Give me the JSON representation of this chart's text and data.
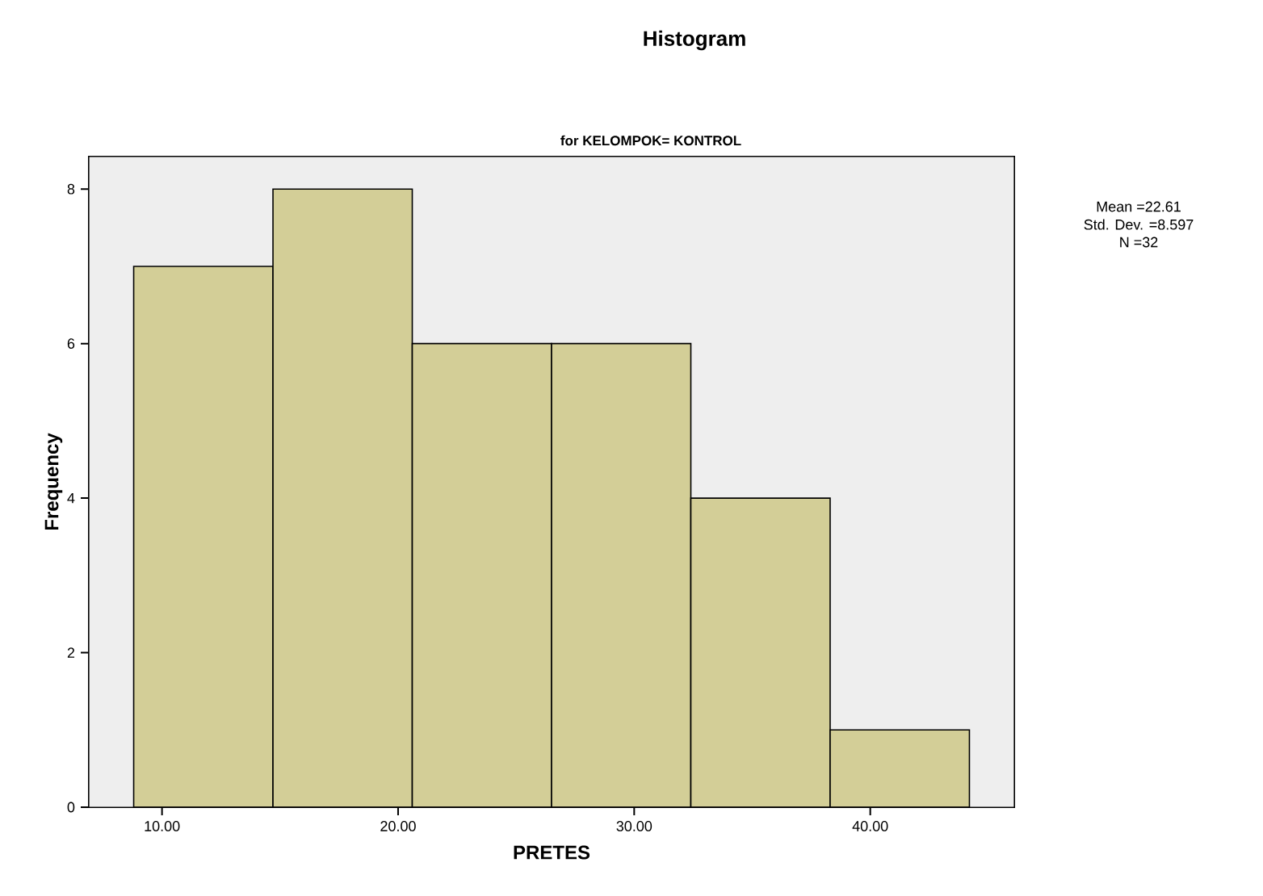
{
  "chart_data": {
    "type": "histogram",
    "title": "Histogram",
    "subtitle": "for KELOMPOK= KONTROL",
    "xlabel": "PRETES",
    "ylabel": "Frequency",
    "bins": [
      8.8,
      14.7,
      20.6,
      26.5,
      32.4,
      38.3,
      44.2
    ],
    "values": [
      7,
      8,
      6,
      6,
      4,
      1
    ],
    "color": "#d3ce97",
    "xlim": [
      6.9,
      46.1
    ],
    "xticks": [
      {
        "value": 10,
        "label": "10.00"
      },
      {
        "value": 20,
        "label": "20.00"
      },
      {
        "value": 30,
        "label": "30.00"
      },
      {
        "value": 40,
        "label": "40.00"
      }
    ],
    "ylim": [
      0,
      8.42
    ],
    "yticks": [
      0,
      2,
      4,
      6,
      8
    ],
    "annotations": [
      "Mean =22.61",
      "Std. Dev. =8.597",
      "N =32"
    ]
  }
}
